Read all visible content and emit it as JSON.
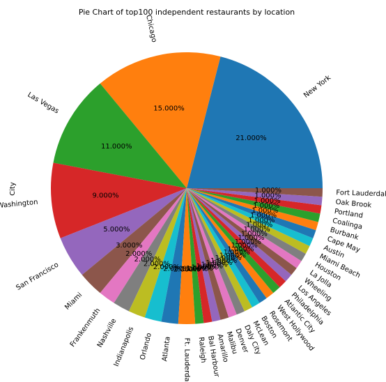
{
  "chart_data": {
    "type": "pie",
    "title": "Pie Chart of top100 independent restaurants by location",
    "ylabel": "City",
    "start_angle_deg": 0,
    "direction": "counterclockwise",
    "autopct_format": "%1.3f%%",
    "slices": [
      {
        "label": "New York",
        "value": 21,
        "pct_label": "21.000%",
        "color": "#1f77b4"
      },
      {
        "label": "Chicago",
        "value": 15,
        "pct_label": "15.000%",
        "color": "#ff7f0e"
      },
      {
        "label": "Las Vegas",
        "value": 11,
        "pct_label": "11.000%",
        "color": "#2ca02c"
      },
      {
        "label": "Washington",
        "value": 9,
        "pct_label": "9.000%",
        "color": "#d62728"
      },
      {
        "label": "San Francisco",
        "value": 5,
        "pct_label": "5.000%",
        "color": "#9467bd"
      },
      {
        "label": "Miami",
        "value": 3,
        "pct_label": "3.000%",
        "color": "#8c564b"
      },
      {
        "label": "Frankenmuth",
        "value": 2,
        "pct_label": "2.000%",
        "color": "#e377c2"
      },
      {
        "label": "Nashville",
        "value": 2,
        "pct_label": "2.000%",
        "color": "#7f7f7f"
      },
      {
        "label": "Indianapolis",
        "value": 2,
        "pct_label": "2.000%",
        "color": "#bcbd22"
      },
      {
        "label": "Orlando",
        "value": 2,
        "pct_label": "2.000%",
        "color": "#17becf"
      },
      {
        "label": "Atlanta",
        "value": 2,
        "pct_label": "2.000%",
        "color": "#1f77b4"
      },
      {
        "label": "Ft. Lauderdale",
        "value": 2,
        "pct_label": "2.000%",
        "color": "#ff7f0e"
      },
      {
        "label": "Raleigh",
        "value": 1,
        "pct_label": "1.000%",
        "color": "#2ca02c"
      },
      {
        "label": "Bal Harbour",
        "value": 1,
        "pct_label": "1.000%",
        "color": "#d62728"
      },
      {
        "label": "Amarillo",
        "value": 1,
        "pct_label": "1.000%",
        "color": "#9467bd"
      },
      {
        "label": "Malibu",
        "value": 1,
        "pct_label": "1.000%",
        "color": "#8c564b"
      },
      {
        "label": "Denver",
        "value": 1,
        "pct_label": "1.000%",
        "color": "#e377c2"
      },
      {
        "label": "Daly City",
        "value": 1,
        "pct_label": "1.000%",
        "color": "#7f7f7f"
      },
      {
        "label": "McLean",
        "value": 1,
        "pct_label": "1.000%",
        "color": "#bcbd22"
      },
      {
        "label": "Boston",
        "value": 1,
        "pct_label": "1.000%",
        "color": "#17becf"
      },
      {
        "label": "Rosemont",
        "value": 1,
        "pct_label": "1.000%",
        "color": "#1f77b4"
      },
      {
        "label": "West Hollywood",
        "value": 1,
        "pct_label": "1.000%",
        "color": "#ff7f0e"
      },
      {
        "label": "Atlantic City",
        "value": 1,
        "pct_label": "1.000%",
        "color": "#2ca02c"
      },
      {
        "label": "Philadelphia",
        "value": 1,
        "pct_label": "1.000%",
        "color": "#d62728"
      },
      {
        "label": "Los Angeles",
        "value": 1,
        "pct_label": "1.000%",
        "color": "#9467bd"
      },
      {
        "label": "Wheeling",
        "value": 1,
        "pct_label": "1.000%",
        "color": "#8c564b"
      },
      {
        "label": "La Jolla",
        "value": 1,
        "pct_label": "1.000%",
        "color": "#e377c2"
      },
      {
        "label": "Houston",
        "value": 1,
        "pct_label": "1.000%",
        "color": "#7f7f7f"
      },
      {
        "label": "Miami Beach",
        "value": 1,
        "pct_label": "1.000%",
        "color": "#bcbd22"
      },
      {
        "label": "Austin",
        "value": 1,
        "pct_label": "1.000%",
        "color": "#17becf"
      },
      {
        "label": "Cape May",
        "value": 1,
        "pct_label": "1.000%",
        "color": "#1f77b4"
      },
      {
        "label": "Burbank",
        "value": 1,
        "pct_label": "1.000%",
        "color": "#ff7f0e"
      },
      {
        "label": "Coalinga",
        "value": 1,
        "pct_label": "1.000%",
        "color": "#2ca02c"
      },
      {
        "label": "Portland",
        "value": 1,
        "pct_label": "1.000%",
        "color": "#d62728"
      },
      {
        "label": "Oak Brook",
        "value": 1,
        "pct_label": "1.000%",
        "color": "#9467bd"
      },
      {
        "label": "Fort Lauderdale",
        "value": 1,
        "pct_label": "1.000%",
        "color": "#8c564b"
      }
    ]
  }
}
